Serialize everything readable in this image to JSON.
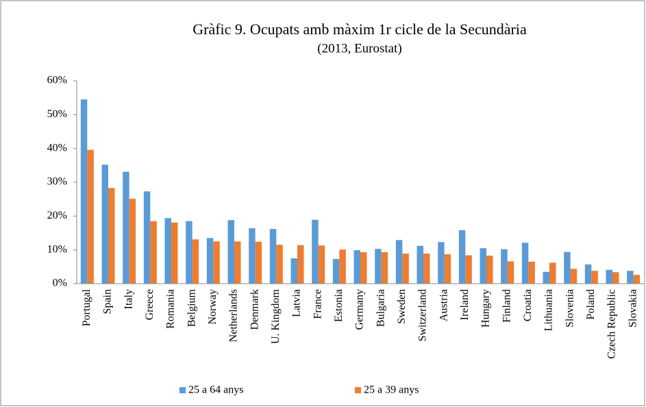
{
  "chart_data": {
    "type": "bar",
    "title": "Gràfic 9. Ocupats amb màxim 1r cicle de la Secundària",
    "subtitle": "(2013, Eurostat)",
    "categories": [
      "Portugal",
      "Spain",
      "Italy",
      "Greece",
      "Romania",
      "Belgium",
      "Norway",
      "Netherlands",
      "Denmark",
      "U. Kingdom",
      "Latvia",
      "France",
      "Estonia",
      "Germany",
      "Bulgaria",
      "Sweden",
      "Switzerland",
      "Austria",
      "Ireland",
      "Hungary",
      "Finland",
      "Croatia",
      "Lithuania",
      "Slovenia",
      "Poland",
      "Czech Republic",
      "Slovakia"
    ],
    "series": [
      {
        "name": "25 a 64 anys",
        "color": "#5b9bd5",
        "values": [
          54.5,
          35.2,
          33.1,
          27.3,
          19.4,
          18.5,
          13.5,
          18.8,
          16.4,
          16.2,
          7.5,
          18.9,
          7.3,
          9.9,
          10.3,
          12.9,
          11.2,
          12.3,
          15.8,
          10.5,
          10.2,
          12.1,
          3.5,
          9.4,
          5.7,
          4.1,
          3.8
        ]
      },
      {
        "name": "25 a 39 anys",
        "color": "#ed7d31",
        "values": [
          39.6,
          28.3,
          25.1,
          18.5,
          18.1,
          13.1,
          12.5,
          12.5,
          12.4,
          11.5,
          11.4,
          11.3,
          10.1,
          9.3,
          9.3,
          8.9,
          8.9,
          8.7,
          8.4,
          8.3,
          6.6,
          6.5,
          6.2,
          4.4,
          3.8,
          3.4,
          2.6
        ]
      }
    ],
    "ylim": [
      0,
      60
    ],
    "yticks": [
      {
        "value": 0,
        "label": "0%"
      },
      {
        "value": 10,
        "label": "10%"
      },
      {
        "value": 20,
        "label": "20%"
      },
      {
        "value": 30,
        "label": "30%"
      },
      {
        "value": 40,
        "label": "40%"
      },
      {
        "value": 50,
        "label": "50%"
      },
      {
        "value": 60,
        "label": "60%"
      }
    ],
    "grid": false,
    "legend": "bottom"
  }
}
